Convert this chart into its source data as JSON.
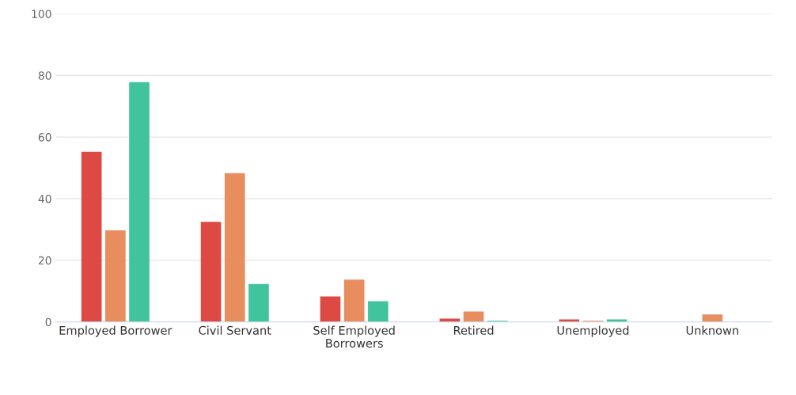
{
  "chart_data": {
    "type": "bar",
    "categories": [
      "Employed Borrower",
      "Civil Servant",
      "Self Employed\nBorrowers",
      "Retired",
      "Unemployed",
      "Unknown"
    ],
    "series": [
      {
        "color": "#dc4a43",
        "values": [
          55.2,
          32.5,
          8.3,
          1.1,
          0.8,
          null
        ]
      },
      {
        "color": "#e88d5e",
        "values": [
          29.7,
          48.3,
          13.7,
          3.4,
          0.4,
          2.4
        ]
      },
      {
        "color": "#41c49e",
        "values": [
          77.8,
          12.3,
          6.7,
          0.4,
          0.8,
          null
        ]
      }
    ],
    "ylim": [
      0,
      100
    ],
    "yticks": [
      0,
      20,
      40,
      60,
      80,
      100
    ],
    "grid": "y"
  }
}
